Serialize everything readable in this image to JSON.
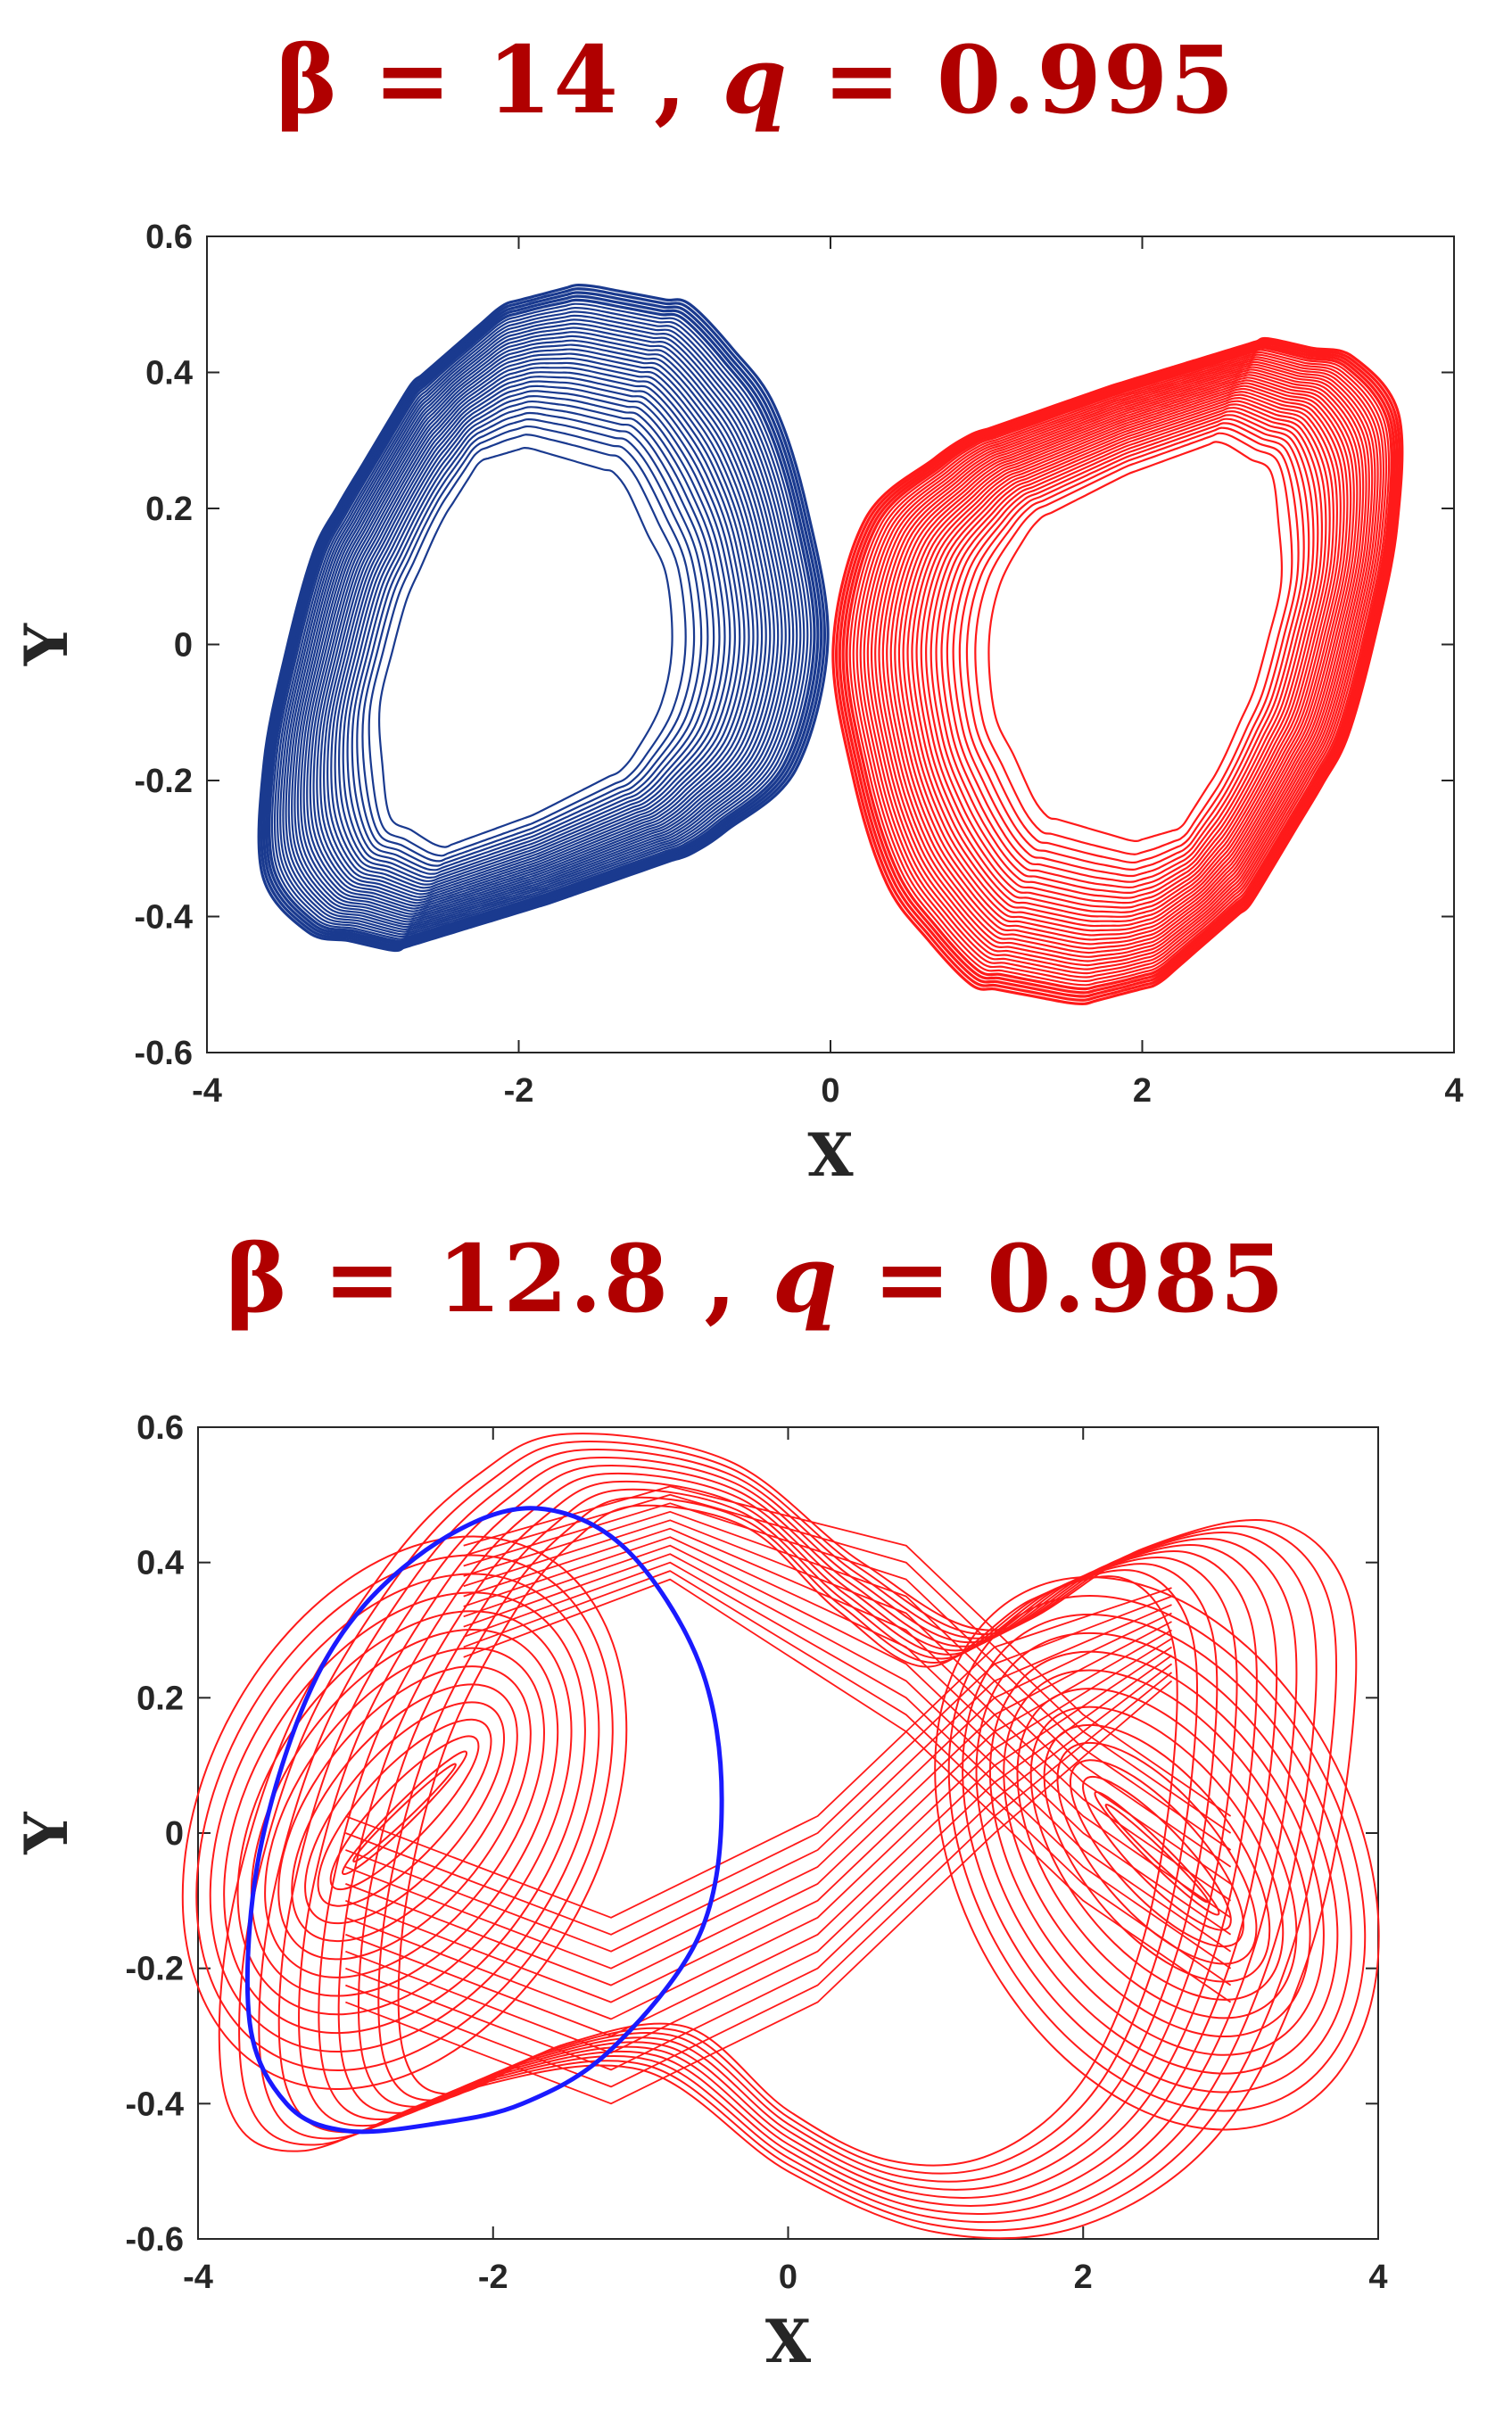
{
  "chart_data": [
    {
      "type": "line",
      "title": {
        "beta_label": "β",
        "beta_value": "14",
        "q_label": "q",
        "q_value": "0.995",
        "eq": "=",
        "sep": ","
      },
      "xlabel": "X",
      "ylabel": "Y",
      "xlim": [
        -4,
        4
      ],
      "ylim": [
        -0.6,
        0.6
      ],
      "xticks": [
        "-4",
        "-2",
        "0",
        "2",
        "4"
      ],
      "yticks": [
        "0.6",
        "0.4",
        "0.2",
        "0",
        "-0.2",
        "-0.4",
        "-0.6"
      ],
      "grid": false,
      "series": [
        {
          "color": "#1a3a8f",
          "kind": "attractor-band",
          "outer": [
            [
              -1.6,
              0.53
            ],
            [
              -0.9,
              0.5
            ],
            [
              -0.4,
              0.38
            ],
            [
              -0.15,
              0.2
            ],
            [
              0.0,
              0.02
            ],
            [
              -0.2,
              -0.18
            ],
            [
              -0.8,
              -0.3
            ],
            [
              -1.8,
              -0.38
            ],
            [
              -2.8,
              -0.45
            ],
            [
              -3.4,
              -0.42
            ],
            [
              -3.7,
              -0.32
            ],
            [
              -3.6,
              -0.1
            ],
            [
              -3.3,
              0.15
            ],
            [
              -2.7,
              0.38
            ],
            [
              -2.1,
              0.5
            ]
          ],
          "inner": [
            [
              -1.95,
              0.29
            ],
            [
              -1.35,
              0.25
            ],
            [
              -1.05,
              0.1
            ],
            [
              -1.0,
              -0.05
            ],
            [
              -1.3,
              -0.18
            ],
            [
              -1.9,
              -0.25
            ],
            [
              -2.5,
              -0.3
            ],
            [
              -2.85,
              -0.25
            ],
            [
              -2.9,
              -0.1
            ],
            [
              -2.75,
              0.05
            ],
            [
              -2.5,
              0.18
            ],
            [
              -2.25,
              0.27
            ]
          ]
        },
        {
          "color": "#ff1a1a",
          "kind": "attractor-band",
          "outer": [
            [
              1.6,
              -0.53
            ],
            [
              0.9,
              -0.5
            ],
            [
              0.4,
              -0.38
            ],
            [
              0.15,
              -0.2
            ],
            [
              0.0,
              -0.02
            ],
            [
              0.2,
              0.18
            ],
            [
              0.8,
              0.3
            ],
            [
              1.8,
              0.38
            ],
            [
              2.8,
              0.45
            ],
            [
              3.4,
              0.42
            ],
            [
              3.7,
              0.32
            ],
            [
              3.6,
              0.1
            ],
            [
              3.3,
              -0.15
            ],
            [
              2.7,
              -0.38
            ],
            [
              2.1,
              -0.5
            ]
          ],
          "inner": [
            [
              1.95,
              -0.29
            ],
            [
              1.35,
              -0.25
            ],
            [
              1.05,
              -0.1
            ],
            [
              1.0,
              0.05
            ],
            [
              1.3,
              0.18
            ],
            [
              1.9,
              0.25
            ],
            [
              2.5,
              0.3
            ],
            [
              2.85,
              0.25
            ],
            [
              2.9,
              0.1
            ],
            [
              2.75,
              -0.05
            ],
            [
              2.5,
              -0.18
            ],
            [
              2.25,
              -0.27
            ]
          ]
        }
      ]
    },
    {
      "type": "line",
      "title": {
        "beta_label": "β",
        "beta_value": "12.8",
        "q_label": "q",
        "q_value": "0.985",
        "eq": "=",
        "sep": ","
      },
      "xlabel": "X",
      "ylabel": "Y",
      "xlim": [
        -4,
        4
      ],
      "ylim": [
        -0.6,
        0.6
      ],
      "xticks": [
        "-4",
        "-2",
        "0",
        "2",
        "4"
      ],
      "yticks": [
        "0.6",
        "0.4",
        "0.2",
        "0",
        "-0.2",
        "-0.4",
        "-0.6"
      ],
      "grid": false,
      "series": [
        {
          "color": "#ff1a1a",
          "kind": "double-scroll",
          "left_center": [
            -2.6,
            0.03
          ],
          "right_center": [
            2.5,
            -0.03
          ],
          "outer": [
            [
              -1.5,
              0.59
            ],
            [
              -0.4,
              0.55
            ],
            [
              0.5,
              0.4
            ],
            [
              1.4,
              0.3
            ],
            [
              2.4,
              0.42
            ],
            [
              3.3,
              0.46
            ],
            [
              3.8,
              0.35
            ],
            [
              3.8,
              0.1
            ],
            [
              3.5,
              -0.2
            ],
            [
              2.9,
              -0.45
            ],
            [
              2.0,
              -0.58
            ],
            [
              1.0,
              -0.59
            ],
            [
              0.0,
              -0.5
            ],
            [
              -1.0,
              -0.35
            ],
            [
              -2.2,
              -0.38
            ],
            [
              -3.3,
              -0.47
            ],
            [
              -3.8,
              -0.4
            ],
            [
              -3.8,
              -0.15
            ],
            [
              -3.4,
              0.15
            ],
            [
              -2.7,
              0.4
            ],
            [
              -2.1,
              0.53
            ]
          ]
        },
        {
          "color": "#1a1aff",
          "kind": "closed-orbit",
          "points": [
            [
              -1.7,
              0.48
            ],
            [
              -1.1,
              0.42
            ],
            [
              -0.6,
              0.25
            ],
            [
              -0.45,
              0.05
            ],
            [
              -0.6,
              -0.15
            ],
            [
              -1.2,
              -0.32
            ],
            [
              -1.8,
              -0.4
            ],
            [
              -2.4,
              -0.43
            ],
            [
              -3.0,
              -0.44
            ],
            [
              -3.4,
              -0.4
            ],
            [
              -3.65,
              -0.28
            ],
            [
              -3.6,
              -0.05
            ],
            [
              -3.3,
              0.18
            ],
            [
              -2.9,
              0.33
            ],
            [
              -2.3,
              0.44
            ]
          ]
        }
      ]
    }
  ]
}
